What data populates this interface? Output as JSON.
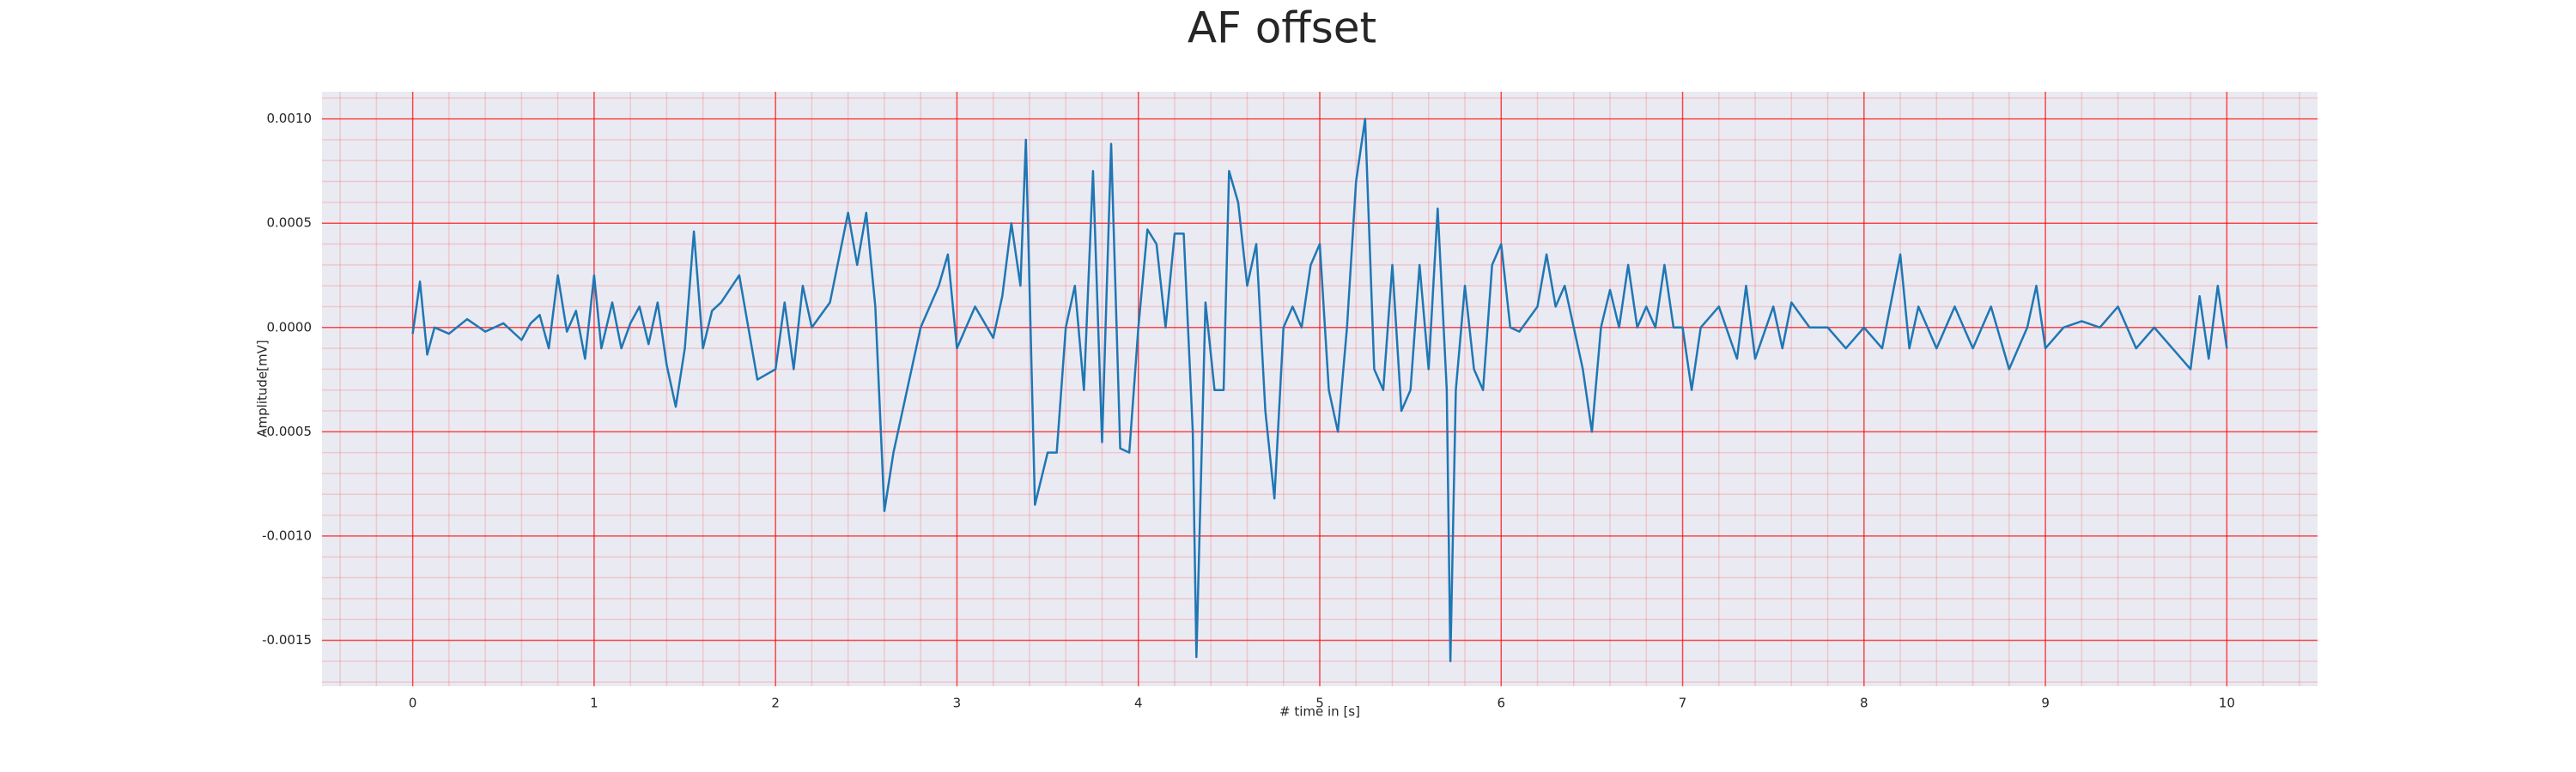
{
  "chart_data": {
    "type": "line",
    "title": "AF offset",
    "xlabel": "# time in [s]",
    "ylabel": "Amplitude[mV]",
    "xlim": [
      -0.5,
      10.5
    ],
    "ylim": [
      -0.00172,
      0.00113
    ],
    "xticks": [
      0,
      1,
      2,
      3,
      4,
      5,
      6,
      7,
      8,
      9,
      10
    ],
    "yticks": [
      -0.0015,
      {
        "value": -0.001,
        "label": "-0.0010"
      },
      -0.0005,
      {
        "value": 0,
        "label": "0.0000"
      },
      0.0005,
      {
        "value": 0.001,
        "label": "0.0010"
      }
    ],
    "grid": true,
    "minor_grid": true,
    "grid_color": "#ff0000",
    "background": "#eaeaf2",
    "x": [
      0,
      0.04,
      0.08,
      0.12,
      0.2,
      0.3,
      0.4,
      0.5,
      0.6,
      0.65,
      0.7,
      0.75,
      0.8,
      0.85,
      0.9,
      0.95,
      1.0,
      1.04,
      1.1,
      1.15,
      1.2,
      1.25,
      1.3,
      1.35,
      1.4,
      1.45,
      1.5,
      1.55,
      1.6,
      1.65,
      1.7,
      1.8,
      1.9,
      2.0,
      2.05,
      2.1,
      2.15,
      2.2,
      2.3,
      2.4,
      2.45,
      2.5,
      2.55,
      2.6,
      2.65,
      2.7,
      2.8,
      2.9,
      2.95,
      3.0,
      3.1,
      3.2,
      3.25,
      3.3,
      3.35,
      3.38,
      3.43,
      3.5,
      3.55,
      3.6,
      3.65,
      3.7,
      3.75,
      3.8,
      3.85,
      3.9,
      3.95,
      4.0,
      4.05,
      4.1,
      4.15,
      4.2,
      4.25,
      4.3,
      4.32,
      4.37,
      4.42,
      4.47,
      4.5,
      4.55,
      4.6,
      4.65,
      4.7,
      4.75,
      4.8,
      4.85,
      4.9,
      4.95,
      5.0,
      5.05,
      5.1,
      5.15,
      5.2,
      5.25,
      5.3,
      5.35,
      5.4,
      5.45,
      5.5,
      5.55,
      5.6,
      5.65,
      5.7,
      5.72,
      5.75,
      5.8,
      5.85,
      5.9,
      5.95,
      6.0,
      6.05,
      6.1,
      6.2,
      6.25,
      6.3,
      6.35,
      6.4,
      6.45,
      6.5,
      6.55,
      6.6,
      6.65,
      6.7,
      6.75,
      6.8,
      6.85,
      6.9,
      6.95,
      7.0,
      7.05,
      7.1,
      7.2,
      7.3,
      7.35,
      7.4,
      7.5,
      7.55,
      7.6,
      7.7,
      7.8,
      7.9,
      8.0,
      8.1,
      8.2,
      8.25,
      8.3,
      8.4,
      8.5,
      8.6,
      8.7,
      8.8,
      8.9,
      8.95,
      9.0,
      9.1,
      9.2,
      9.3,
      9.4,
      9.5,
      9.6,
      9.7,
      9.8,
      9.85,
      9.9,
      9.95,
      10.0
    ],
    "series": [
      {
        "color": "#1f77b4",
        "values": [
          -3e-05,
          0.00022,
          -0.00013,
          0.0,
          -3e-05,
          4e-05,
          -2e-05,
          2e-05,
          -6e-05,
          2e-05,
          6e-05,
          -0.0001,
          0.00025,
          -2e-05,
          8e-05,
          -0.00015,
          0.00025,
          -0.0001,
          0.00012,
          -0.0001,
          2e-05,
          0.0001,
          -8e-05,
          0.00012,
          -0.00018,
          -0.00038,
          -0.0001,
          0.00046,
          -0.0001,
          8e-05,
          0.00012,
          0.00025,
          -0.00025,
          -0.0002,
          0.00012,
          -0.0002,
          0.0002,
          0.0,
          0.00012,
          0.00055,
          0.0003,
          0.00055,
          0.0001,
          -0.00088,
          -0.0006,
          -0.0004,
          0.0,
          0.0002,
          0.00035,
          -0.0001,
          0.0001,
          -5e-05,
          0.00015,
          0.0005,
          0.0002,
          0.0009,
          -0.00085,
          -0.0006,
          -0.0006,
          0.0,
          0.0002,
          -0.0003,
          0.00075,
          -0.00055,
          0.00088,
          -0.00058,
          -0.0006,
          0.0,
          0.00047,
          0.0004,
          0.0,
          0.00045,
          0.00045,
          -0.0005,
          -0.00158,
          0.00012,
          -0.0003,
          -0.0003,
          0.00075,
          0.0006,
          0.0002,
          0.0004,
          -0.0004,
          -0.00082,
          0.0,
          0.0001,
          0.0,
          0.0003,
          0.0004,
          -0.0003,
          -0.0005,
          0.0,
          0.0007,
          0.001,
          -0.0002,
          -0.0003,
          0.0003,
          -0.0004,
          -0.0003,
          0.0003,
          -0.0002,
          0.00057,
          -0.0003,
          -0.0016,
          -0.0003,
          0.0002,
          -0.0002,
          -0.0003,
          0.0003,
          0.0004,
          0.0,
          -2e-05,
          0.0001,
          0.00035,
          0.0001,
          0.0002,
          0.0,
          -0.0002,
          -0.0005,
          0.0,
          0.00018,
          0.0,
          0.0003,
          0.0,
          0.0001,
          0.0,
          0.0003,
          0.0,
          0.0,
          -0.0003,
          0.0,
          0.0001,
          -0.00015,
          0.0002,
          -0.00015,
          0.0001,
          -0.0001,
          0.00012,
          0.0,
          0.0,
          -0.0001,
          0.0,
          -0.0001,
          0.00035,
          -0.0001,
          0.0001,
          -0.0001,
          0.0001,
          -0.0001,
          0.0001,
          -0.0002,
          0.0,
          0.0002,
          -0.0001,
          0.0,
          3e-05,
          0.0,
          0.0001,
          -0.0001,
          0.0,
          -0.0001,
          -0.0002,
          0.00015,
          -0.00015,
          0.0002,
          -0.0001
        ]
      }
    ]
  }
}
